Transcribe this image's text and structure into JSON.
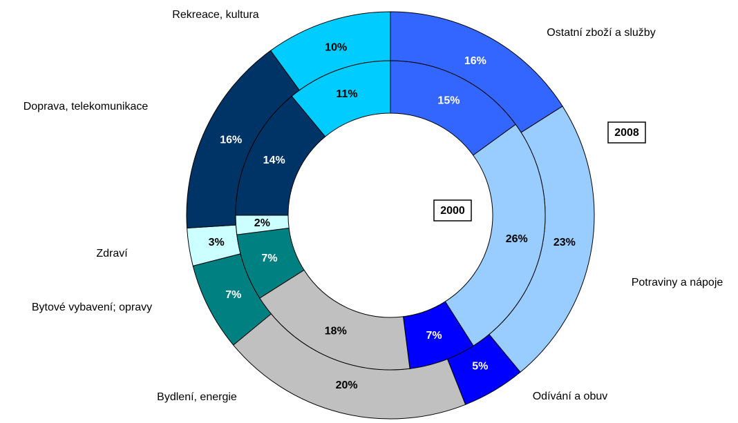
{
  "chart_data": {
    "type": "donut",
    "categories": [
      "Ostatní zboží a služby",
      "Potraviny a nápoje",
      "Odívání a obuv",
      "Bydlení, energie",
      "Bytové vybavení; opravy",
      "Zdraví",
      "Doprava, telekomunikace",
      "Rekreace, kultura"
    ],
    "colors": [
      "#3366ff",
      "#99ccff",
      "#0000ff",
      "#c0c0c0",
      "#008080",
      "#ccffff",
      "#003366",
      "#00ccff"
    ],
    "series": [
      {
        "name": "2008",
        "values": [
          16,
          23,
          5,
          20,
          7,
          3,
          16,
          10
        ],
        "value_labels": [
          "16%",
          "23%",
          "5%",
          "20%",
          "7%",
          "3%",
          "16%",
          "10%"
        ]
      },
      {
        "name": "2000",
        "values": [
          15,
          26,
          7,
          18,
          7,
          2,
          14,
          11
        ],
        "value_labels": [
          "15%",
          "26%",
          "7%",
          "18%",
          "7%",
          "2%",
          "14%",
          "11%"
        ]
      }
    ]
  }
}
